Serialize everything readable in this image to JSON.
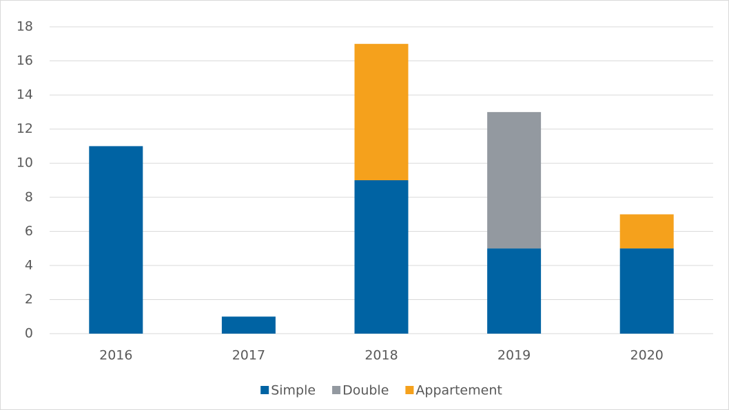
{
  "chart_data": {
    "type": "stacked_bar",
    "categories": [
      "2016",
      "2017",
      "2018",
      "2019",
      "2020"
    ],
    "series": [
      {
        "name": "Simple",
        "color": "#0063a3",
        "values": [
          11,
          1,
          9,
          5,
          5
        ]
      },
      {
        "name": "Double",
        "color": "#9399a0",
        "values": [
          0,
          0,
          0,
          8,
          0
        ]
      },
      {
        "name": "Appartement",
        "color": "#f5a11c",
        "values": [
          0,
          0,
          8,
          0,
          2
        ]
      }
    ],
    "ylim": [
      0,
      18
    ],
    "yticks": [
      0,
      2,
      4,
      6,
      8,
      10,
      12,
      14,
      16,
      18
    ],
    "grid": true,
    "legend": "bottom"
  }
}
